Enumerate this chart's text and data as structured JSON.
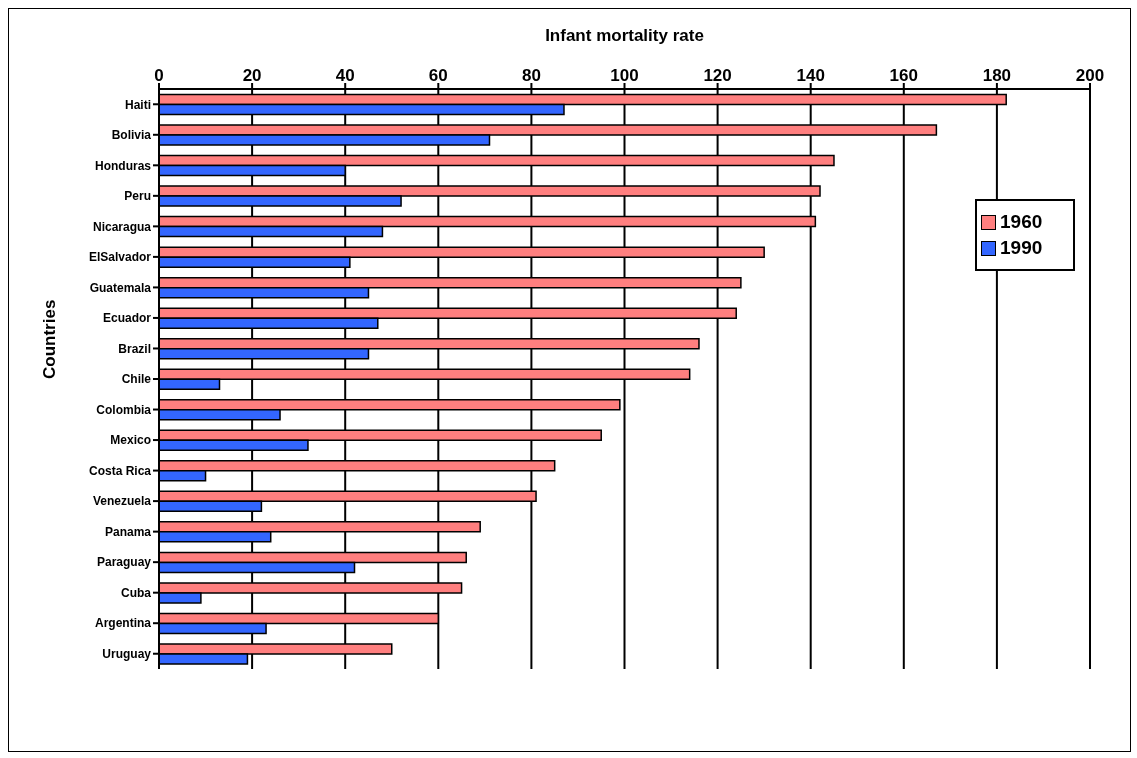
{
  "chart_data": {
    "type": "bar",
    "orientation": "horizontal",
    "xlabel": "Infant mortality rate",
    "ylabel": "Countries",
    "categories": [
      "Haiti",
      "Bolivia",
      "Honduras",
      "Peru",
      "Nicaragua",
      "ElSalvador",
      "Guatemala",
      "Ecuador",
      "Brazil",
      "Chile",
      "Colombia",
      "Mexico",
      "Costa Rica",
      "Venezuela",
      "Panama",
      "Paraguay",
      "Cuba",
      "Argentina",
      "Uruguay"
    ],
    "series": [
      {
        "name": "1960",
        "color": "#ff7f7f",
        "values": [
          182,
          167,
          145,
          142,
          141,
          130,
          125,
          124,
          116,
          114,
          99,
          95,
          85,
          81,
          69,
          66,
          65,
          60,
          50
        ]
      },
      {
        "name": "1990",
        "color": "#3366ff",
        "values": [
          87,
          71,
          40,
          52,
          48,
          41,
          45,
          47,
          45,
          13,
          26,
          32,
          10,
          22,
          24,
          42,
          9,
          23,
          19
        ]
      }
    ],
    "xlim": [
      0,
      200
    ],
    "xticks": [
      0,
      20,
      40,
      60,
      80,
      100,
      120,
      140,
      160,
      180,
      200
    ],
    "grid": "x",
    "legend": "top right"
  }
}
